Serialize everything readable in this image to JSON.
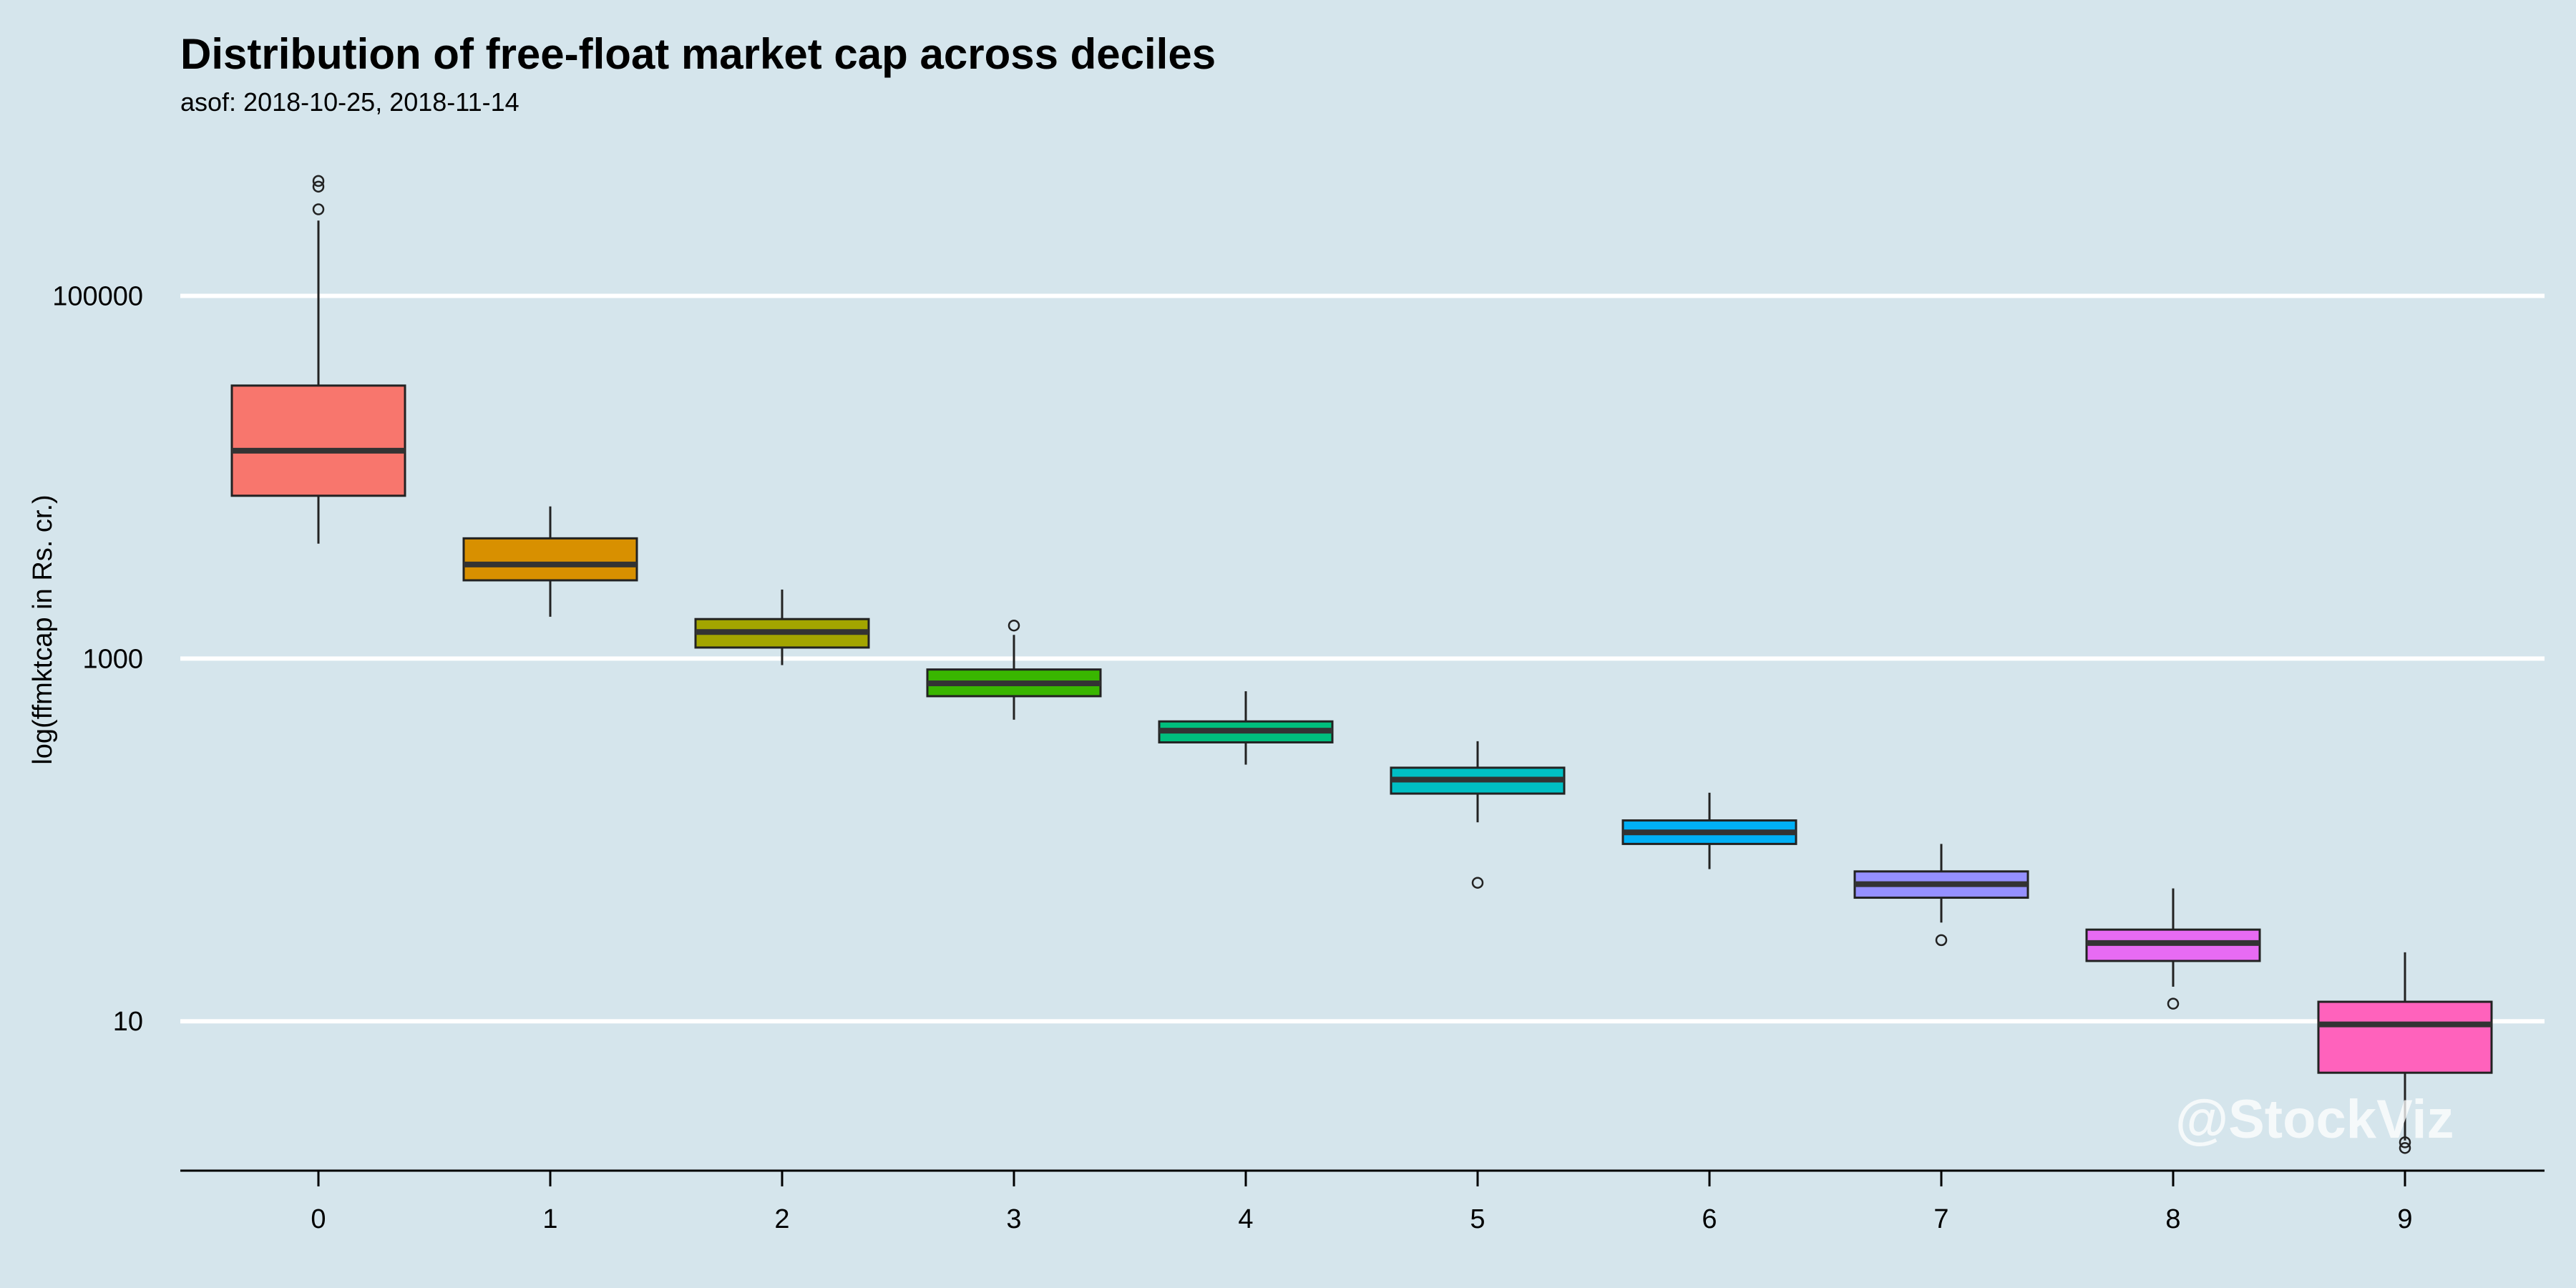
{
  "chart_data": {
    "type": "box",
    "title": "Distribution of free-float market cap across deciles",
    "subtitle": "asof: 2018-10-25, 2018-11-14",
    "xlabel": "",
    "ylabel": "log(ffmktcap in Rs. cr.)",
    "y_scale": "log10",
    "ylim": [
      1.5,
      1000000
    ],
    "y_ticks": [
      10,
      1000,
      100000
    ],
    "y_tick_labels": [
      "10",
      "1000",
      "100000"
    ],
    "grid": "horizontal-major",
    "categories": [
      "0",
      "1",
      "2",
      "3",
      "4",
      "5",
      "6",
      "7",
      "8",
      "9"
    ],
    "boxes": [
      {
        "category": "0",
        "color": "#F8766D",
        "whisker_low": 4300,
        "q1": 7900,
        "median": 14000,
        "q3": 32000,
        "whisker_high": 260000,
        "outliers": [
          300000,
          400000,
          430000
        ]
      },
      {
        "category": "1",
        "color": "#D89000",
        "whisker_low": 1700,
        "q1": 2700,
        "median": 3300,
        "q3": 4600,
        "whisker_high": 6900,
        "outliers": []
      },
      {
        "category": "2",
        "color": "#A3A500",
        "whisker_low": 920,
        "q1": 1150,
        "median": 1400,
        "q3": 1650,
        "whisker_high": 2400,
        "outliers": []
      },
      {
        "category": "3",
        "color": "#39B600",
        "whisker_low": 460,
        "q1": 620,
        "median": 730,
        "q3": 870,
        "whisker_high": 1350,
        "outliers": [
          1520
        ]
      },
      {
        "category": "4",
        "color": "#00BF7D",
        "whisker_low": 260,
        "q1": 345,
        "median": 400,
        "q3": 450,
        "whisker_high": 660,
        "outliers": []
      },
      {
        "category": "5",
        "color": "#00BFC4",
        "whisker_low": 125,
        "q1": 180,
        "median": 215,
        "q3": 250,
        "whisker_high": 350,
        "outliers": [
          58
        ]
      },
      {
        "category": "6",
        "color": "#00B0F6",
        "whisker_low": 69,
        "q1": 95,
        "median": 110,
        "q3": 128,
        "whisker_high": 182,
        "outliers": []
      },
      {
        "category": "7",
        "color": "#9590FF",
        "whisker_low": 35,
        "q1": 48,
        "median": 57,
        "q3": 67,
        "whisker_high": 95,
        "outliers": [
          28
        ]
      },
      {
        "category": "8",
        "color": "#E76BF3",
        "whisker_low": 15.5,
        "q1": 21.5,
        "median": 27,
        "q3": 32,
        "whisker_high": 54,
        "outliers": [
          12.5
        ]
      },
      {
        "category": "9",
        "color": "#FF62BC",
        "whisker_low": 2.2,
        "q1": 5.2,
        "median": 9.6,
        "q3": 12.8,
        "whisker_high": 24,
        "outliers": [
          2.0,
          2.15
        ]
      }
    ],
    "watermark": "@StockViz"
  }
}
